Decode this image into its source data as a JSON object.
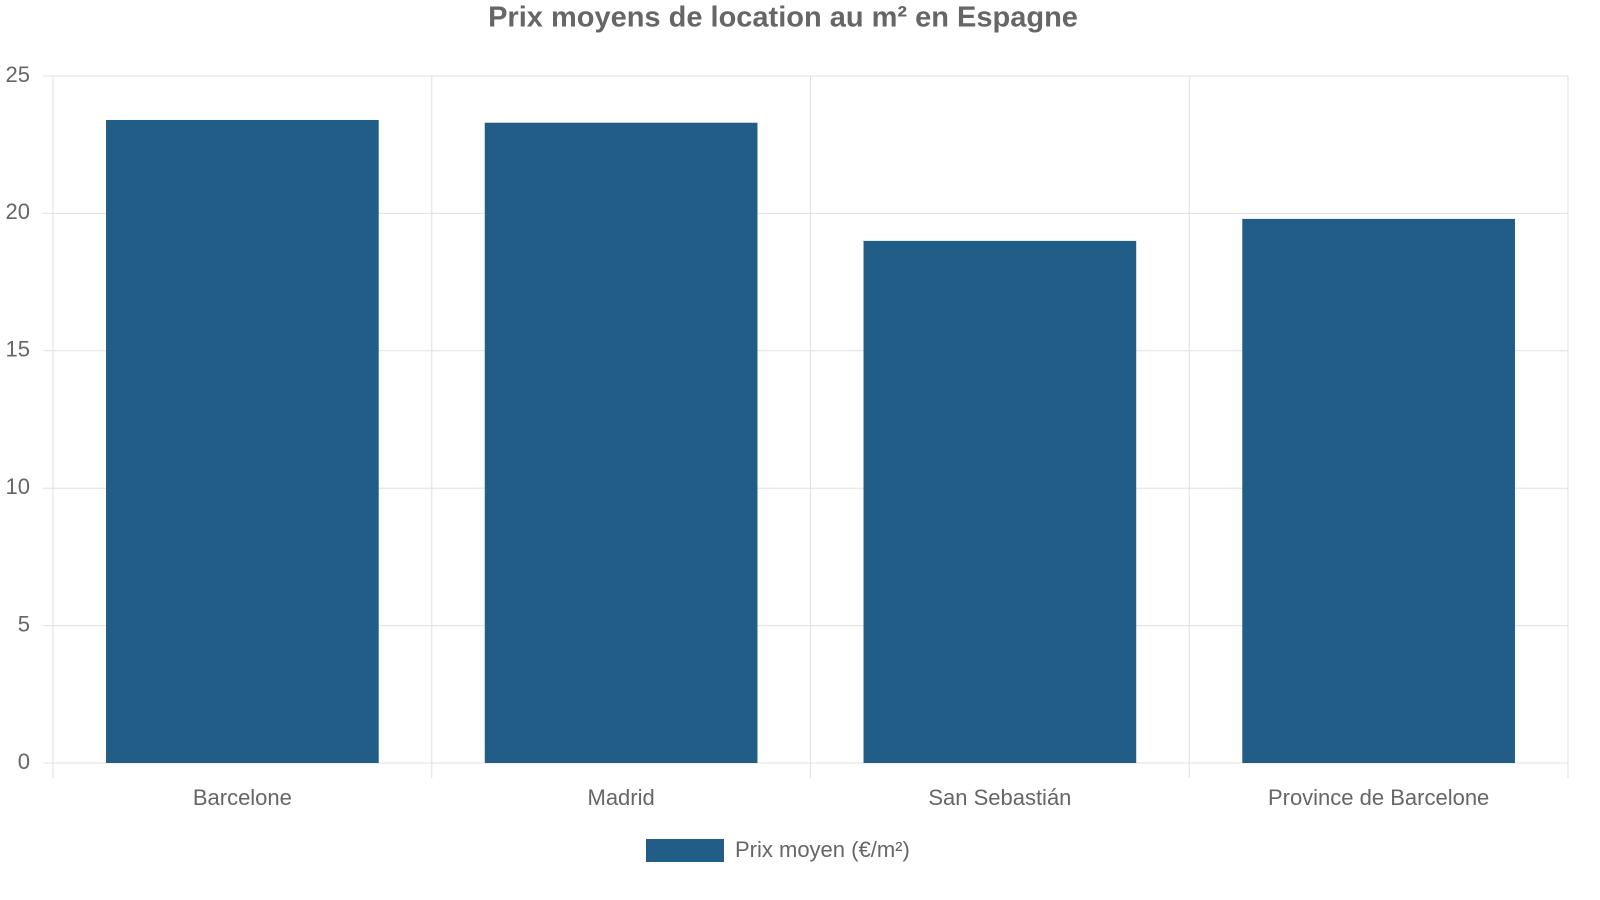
{
  "chart_data": {
    "type": "bar",
    "title": "Prix moyens de location au m² en Espagne",
    "categories": [
      "Barcelone",
      "Madrid",
      "San Sebastián",
      "Province de Barcelone"
    ],
    "series": [
      {
        "name": "Prix moyen (€/m²)",
        "color": "#215d87",
        "values": [
          23.4,
          23.3,
          19.0,
          19.8
        ]
      }
    ],
    "ylim": [
      0,
      25
    ],
    "yticks": [
      0,
      5,
      10,
      15,
      20,
      25
    ],
    "grid": true,
    "legend": "bottom"
  }
}
